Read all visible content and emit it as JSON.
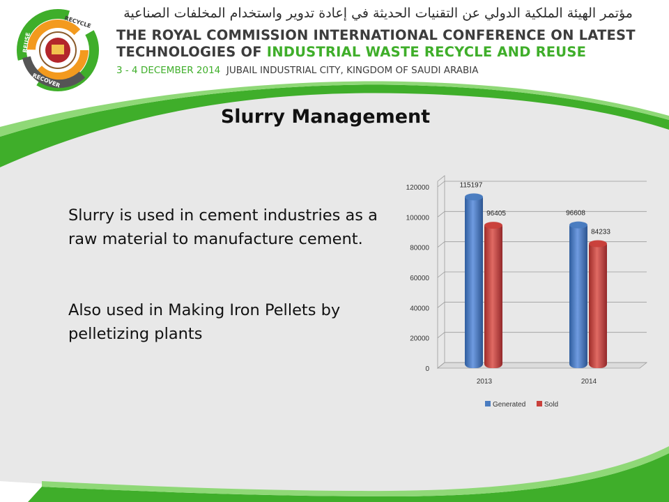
{
  "header": {
    "arabic_title": "مؤتمر الهيئة الملكية الدولي عن التقنيات الحديثة في إعادة تدوير واستخدام المخلفات الصناعية",
    "title_line_1": "THE ROYAL COMMISSION INTERNATIONAL CONFERENCE ON LATEST",
    "title_line_2_prefix": "TECHNOLOGIES OF ",
    "title_line_2_highlight": "INDUSTRIAL WASTE RECYCLE AND REUSE",
    "event_date": "3 - 4 DECEMBER 2014",
    "event_location": "JUBAIL INDUSTRIAL CITY, KINGDOM OF SAUDI ARABIA"
  },
  "logo": {
    "ring_labels": [
      "RECYCLE",
      "REUSE",
      "RECOVER"
    ],
    "colors": {
      "green": "#3fae2a",
      "orange": "#f39a1e",
      "gray": "#555555"
    }
  },
  "slide": {
    "title": "Slurry Management",
    "paragraphs": [
      "Slurry is used in cement industries as a raw material to manufacture cement.",
      "Also used in Making Iron Pellets by pelletizing plants"
    ]
  },
  "colors": {
    "accent_green": "#3fae2a",
    "swoosh_dark": "#2f9e22",
    "swoosh_light": "#7fd36a",
    "background_gray": "#e8e8e8"
  },
  "chart_data": {
    "type": "bar",
    "categories": [
      "2013",
      "2014"
    ],
    "series": [
      {
        "name": "Generated",
        "values": [
          115197,
          96608
        ],
        "color": "#4a7cc0"
      },
      {
        "name": "Sold",
        "values": [
          96405,
          84233
        ],
        "color": "#c9403b"
      }
    ],
    "ylim": [
      0,
      120000
    ],
    "yticks": [
      0,
      20000,
      40000,
      60000,
      80000,
      100000,
      120000
    ],
    "grid": true,
    "legend": "bottom",
    "data_labels": true
  }
}
